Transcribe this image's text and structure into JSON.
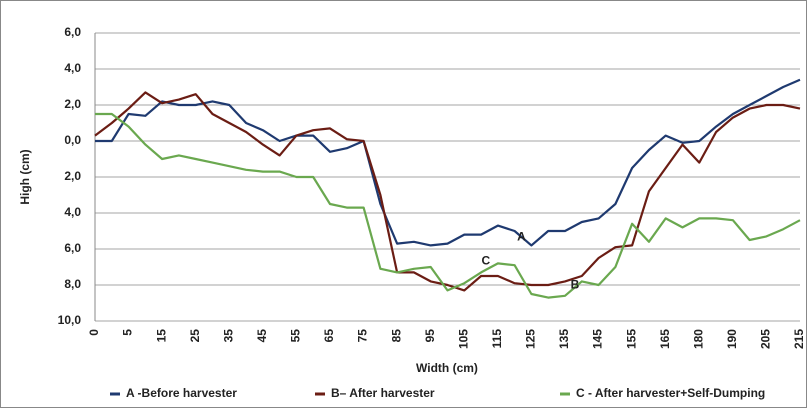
{
  "chart_data": {
    "type": "line",
    "y_label": "High (cm)",
    "x_label": "Width (cm)",
    "categories": [
      "0",
      null,
      "5",
      null,
      "15",
      null,
      "25",
      null,
      "35",
      null,
      "45",
      null,
      "55",
      null,
      "65",
      null,
      "75",
      null,
      "85",
      null,
      "95",
      null,
      "105",
      null,
      "115",
      null,
      "125",
      null,
      "135",
      null,
      "145",
      null,
      "155",
      null,
      "165",
      null,
      "180",
      null,
      "190",
      null,
      "205",
      null,
      "215"
    ],
    "ylim": [
      -10,
      6
    ],
    "yticks": [
      {
        "value": 6,
        "label": "6,0"
      },
      {
        "value": 4,
        "label": "4,0"
      },
      {
        "value": 2,
        "label": "2,0"
      },
      {
        "value": 0,
        "label": "0,0"
      },
      {
        "value": -2,
        "label": "2,0"
      },
      {
        "value": -4,
        "label": "4,0"
      },
      {
        "value": -6,
        "label": "6,0"
      },
      {
        "value": -8,
        "label": "8,0"
      },
      {
        "value": -10,
        "label": "10,0"
      }
    ],
    "grid": true,
    "series": [
      {
        "name": "A -Before harvester",
        "color": "#1f3a70",
        "values": [
          0,
          0,
          1.5,
          1.4,
          2.2,
          2.0,
          2.0,
          2.2,
          2.0,
          1.0,
          0.6,
          0.0,
          0.3,
          0.3,
          -0.6,
          -0.4,
          0.0,
          -3.5,
          -5.7,
          -5.6,
          -5.8,
          -5.7,
          -5.2,
          -5.2,
          -4.7,
          -5.0,
          -5.8,
          -5.0,
          -5.0,
          -4.5,
          -4.3,
          -3.5,
          -1.5,
          -0.5,
          0.3,
          -0.1,
          0.0,
          0.8,
          1.5,
          2.0,
          2.5,
          3.0,
          3.4
        ]
      },
      {
        "name": "B– After harvester",
        "color": "#6b1d14",
        "values": [
          0.3,
          1.0,
          1.8,
          2.7,
          2.1,
          2.3,
          2.6,
          1.5,
          1.0,
          0.5,
          -0.2,
          -0.8,
          0.3,
          0.6,
          0.7,
          0.1,
          0.0,
          -3.0,
          -7.3,
          -7.3,
          -7.8,
          -8.0,
          -8.3,
          -7.5,
          -7.5,
          -7.9,
          -8.0,
          -8.0,
          -7.8,
          -7.5,
          -6.5,
          -5.9,
          -5.8,
          -2.8,
          -1.5,
          -0.2,
          -1.2,
          0.5,
          1.3,
          1.8,
          2.0,
          2.0,
          1.8
        ]
      },
      {
        "name": "C - After harvester+Self-Dumping",
        "color": "#6aa84f",
        "values": [
          1.5,
          1.5,
          0.8,
          -0.2,
          -1.0,
          -0.8,
          -1.0,
          -1.2,
          -1.4,
          -1.6,
          -1.7,
          -1.7,
          -2.0,
          -2.0,
          -3.5,
          -3.7,
          -3.7,
          -7.1,
          -7.3,
          -7.1,
          -7.0,
          -8.3,
          -7.9,
          -7.3,
          -6.8,
          -6.9,
          -8.5,
          -8.7,
          -8.6,
          -7.8,
          -8.0,
          -7.0,
          -4.6,
          -5.6,
          -4.3,
          -4.8,
          -4.3,
          -4.3,
          -4.4,
          -5.5,
          -5.3,
          -4.9,
          -4.4
        ]
      }
    ],
    "annotations": [
      "A",
      "B",
      "C"
    ]
  }
}
